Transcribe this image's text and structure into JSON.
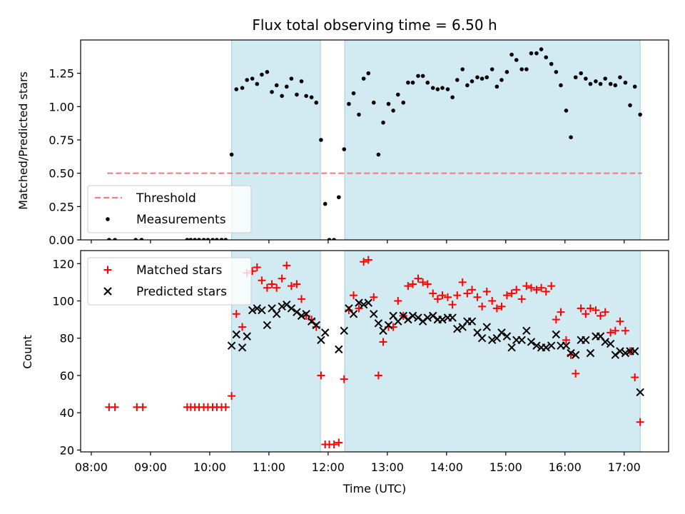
{
  "chart_data": {
    "title": "Flux total observing time = 6.50 h",
    "xlabel": "Time (UTC)",
    "x_tick_labels": [
      "08:00",
      "09:00",
      "10:00",
      "11:00",
      "12:00",
      "13:00",
      "14:00",
      "15:00",
      "16:00",
      "17:00"
    ],
    "xlim_hours": [
      7.82,
      17.75
    ],
    "observing_windows_hours": [
      [
        10.37,
        11.87
      ],
      [
        12.28,
        17.27
      ]
    ],
    "panels": [
      {
        "id": "ratio",
        "type": "scatter",
        "ylabel": "Matched/Predicted stars",
        "ylim": [
          0,
          1.5
        ],
        "yticks": [
          0,
          0.25,
          0.5,
          0.75,
          1.0,
          1.25
        ],
        "ytick_labels": [
          "0.00",
          "0.25",
          "0.50",
          "0.75",
          "1.00",
          "1.25"
        ],
        "threshold": {
          "name": "Threshold",
          "value": 0.5,
          "x_range_hours": [
            8.27,
            17.3
          ],
          "color": "#f08080"
        },
        "legend": {
          "placement": "lower-left",
          "entries": [
            "Threshold",
            "Measurements"
          ]
        },
        "series": [
          {
            "name": "Measurements",
            "marker": "dot",
            "color": "#000000",
            "x_hours": [
              8.3,
              8.4,
              8.75,
              8.85,
              9.62,
              9.68,
              9.75,
              9.82,
              9.9,
              9.97,
              10.05,
              10.12,
              10.2,
              10.27,
              10.37,
              10.45,
              10.55,
              10.63,
              10.72,
              10.8,
              10.88,
              10.97,
              11.05,
              11.13,
              11.22,
              11.3,
              11.38,
              11.47,
              11.55,
              11.63,
              11.72,
              11.8,
              11.88,
              11.95,
              12.02,
              12.1,
              12.18,
              12.27,
              12.35,
              12.43,
              12.52,
              12.6,
              12.68,
              12.77,
              12.85,
              12.93,
              13.02,
              13.1,
              13.18,
              13.27,
              13.35,
              13.43,
              13.52,
              13.6,
              13.68,
              13.77,
              13.85,
              13.93,
              14.02,
              14.1,
              14.18,
              14.27,
              14.35,
              14.43,
              14.52,
              14.6,
              14.68,
              14.77,
              14.85,
              14.93,
              15.02,
              15.1,
              15.18,
              15.27,
              15.35,
              15.43,
              15.52,
              15.6,
              15.68,
              15.77,
              15.85,
              15.93,
              16.02,
              16.1,
              16.18,
              16.27,
              16.35,
              16.43,
              16.52,
              16.6,
              16.68,
              16.77,
              16.85,
              16.93,
              17.02,
              17.1,
              17.18,
              17.27
            ],
            "y": [
              0,
              0,
              0,
              0,
              0,
              0,
              0,
              0,
              0,
              0,
              0,
              0,
              0,
              0,
              0.64,
              1.13,
              1.14,
              1.2,
              1.21,
              1.17,
              1.24,
              1.26,
              1.11,
              1.16,
              1.08,
              1.15,
              1.21,
              1.09,
              1.19,
              1.08,
              1.07,
              1.03,
              0.75,
              0.27,
              0,
              0,
              0.32,
              0.68,
              1.02,
              1.1,
              0.94,
              1.21,
              1.25,
              1.03,
              0.64,
              0.88,
              1.02,
              0.97,
              1.09,
              1.03,
              1.18,
              1.18,
              1.23,
              1.23,
              1.18,
              1.14,
              1.13,
              1.14,
              1.13,
              1.07,
              1.2,
              1.28,
              1.16,
              1.19,
              1.22,
              1.21,
              1.22,
              1.28,
              1.15,
              1.2,
              1.26,
              1.39,
              1.35,
              1.28,
              1.28,
              1.4,
              1.4,
              1.43,
              1.37,
              1.32,
              1.26,
              1.16,
              0.97,
              0.77,
              1.22,
              1.25,
              1.21,
              1.17,
              1.19,
              1.17,
              1.21,
              1.17,
              1.16,
              1.22,
              1.18,
              1.01,
              1.15,
              0.94
            ]
          }
        ]
      },
      {
        "id": "count",
        "type": "scatter",
        "ylabel": "Count",
        "ylim": [
          19,
          127
        ],
        "yticks": [
          20,
          40,
          60,
          80,
          100,
          120
        ],
        "ytick_labels": [
          "20",
          "40",
          "60",
          "80",
          "100",
          "120"
        ],
        "legend": {
          "placement": "upper-left",
          "entries": [
            "Matched stars",
            "Predicted stars"
          ]
        },
        "series": [
          {
            "name": "Matched stars",
            "marker": "plus",
            "color": "#ff0000",
            "x_hours": [
              8.3,
              8.4,
              8.77,
              8.87,
              9.62,
              9.68,
              9.75,
              9.82,
              9.9,
              9.97,
              10.05,
              10.12,
              10.2,
              10.27,
              10.37,
              10.45,
              10.55,
              10.63,
              10.72,
              10.8,
              10.88,
              10.97,
              11.05,
              11.13,
              11.22,
              11.3,
              11.38,
              11.47,
              11.55,
              11.63,
              11.72,
              11.8,
              11.88,
              11.95,
              12.02,
              12.1,
              12.18,
              12.27,
              12.35,
              12.43,
              12.52,
              12.6,
              12.68,
              12.77,
              12.85,
              12.93,
              13.02,
              13.1,
              13.18,
              13.27,
              13.35,
              13.43,
              13.52,
              13.6,
              13.68,
              13.77,
              13.85,
              13.93,
              14.02,
              14.1,
              14.18,
              14.27,
              14.35,
              14.43,
              14.52,
              14.6,
              14.68,
              14.77,
              14.85,
              14.93,
              15.02,
              15.1,
              15.18,
              15.27,
              15.35,
              15.43,
              15.52,
              15.6,
              15.68,
              15.77,
              15.85,
              15.93,
              16.02,
              16.1,
              16.18,
              16.27,
              16.35,
              16.43,
              16.52,
              16.6,
              16.68,
              16.77,
              16.85,
              16.93,
              17.02,
              17.1,
              17.18,
              17.27
            ],
            "y": [
              43,
              43,
              43,
              43,
              43,
              43,
              43,
              43,
              43,
              43,
              43,
              43,
              43,
              43,
              49,
              93,
              86,
              115,
              116,
              118,
              111,
              107,
              109,
              107,
              112,
              119,
              108,
              109,
              101,
              92,
              90,
              86,
              60,
              23,
              23,
              23,
              24,
              58,
              95,
              103,
              96,
              121,
              122,
              102,
              60,
              78,
              86,
              86,
              100,
              92,
              108,
              109,
              112,
              110,
              109,
              104,
              101,
              103,
              102,
              98,
              103,
              110,
              104,
              106,
              102,
              97,
              105,
              100,
              96,
              97,
              103,
              104,
              106,
              101,
              108,
              107,
              106,
              107,
              105,
              108,
              90,
              94,
              79,
              71,
              61,
              96,
              93,
              96,
              95,
              92,
              94,
              83,
              84,
              89,
              84,
              73,
              59,
              35
            ]
          },
          {
            "name": "Predicted stars",
            "marker": "x",
            "color": "#000000",
            "x_hours": [
              10.37,
              10.45,
              10.55,
              10.63,
              10.72,
              10.8,
              10.88,
              10.97,
              11.05,
              11.13,
              11.22,
              11.3,
              11.38,
              11.47,
              11.55,
              11.63,
              11.72,
              11.8,
              11.88,
              11.95,
              12.18,
              12.27,
              12.35,
              12.43,
              12.52,
              12.6,
              12.68,
              12.77,
              12.85,
              12.93,
              13.02,
              13.1,
              13.18,
              13.27,
              13.35,
              13.43,
              13.52,
              13.6,
              13.68,
              13.77,
              13.85,
              13.93,
              14.02,
              14.1,
              14.18,
              14.27,
              14.35,
              14.43,
              14.52,
              14.6,
              14.68,
              14.77,
              14.85,
              14.93,
              15.02,
              15.1,
              15.18,
              15.27,
              15.35,
              15.43,
              15.52,
              15.6,
              15.68,
              15.77,
              15.85,
              15.93,
              16.02,
              16.1,
              16.18,
              16.27,
              16.35,
              16.43,
              16.52,
              16.6,
              16.68,
              16.77,
              16.85,
              16.93,
              17.02,
              17.1,
              17.18,
              17.27
            ],
            "y": [
              76,
              82,
              75,
              81,
              95,
              96,
              95,
              87,
              96,
              93,
              97,
              98,
              96,
              94,
              92,
              93,
              89,
              87,
              79,
              83,
              74,
              84,
              96,
              93,
              99,
              98,
              99,
              93,
              88,
              84,
              87,
              92,
              89,
              92,
              90,
              92,
              91,
              89,
              91,
              92,
              90,
              90,
              91,
              91,
              85,
              86,
              89,
              89,
              83,
              80,
              86,
              79,
              80,
              83,
              81,
              75,
              79,
              79,
              84,
              78,
              76,
              75,
              75,
              76,
              82,
              76,
              76,
              72,
              71,
              79,
              79,
              72,
              81,
              81,
              78,
              77,
              71,
              73,
              72,
              73,
              73,
              51
            ]
          }
        ]
      }
    ]
  }
}
